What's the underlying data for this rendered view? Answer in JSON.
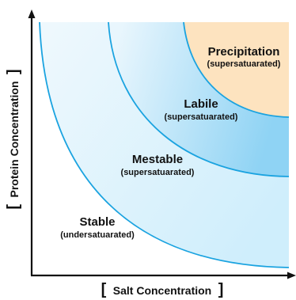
{
  "diagram": {
    "regions": [
      {
        "title": "Precipitation",
        "subtitle": "(supersatuarated)"
      },
      {
        "title": "Labile",
        "subtitle": "(supersatuarated)"
      },
      {
        "title": "Mestable",
        "subtitle": "(supersatuarated)"
      },
      {
        "title": "Stable",
        "subtitle": "(undersatuarated)"
      }
    ],
    "axes": {
      "x_label": "Salt Concentration",
      "y_label": "Protein Concentration",
      "bracket_open": "[",
      "bracket_close": "]"
    },
    "colors": {
      "curve_stroke": "#1aa3e0",
      "precipitation_fill": "#fde3bf",
      "labile_fill_outer": "#8fd3f4",
      "labile_fill_inner": "#e9f6fd",
      "mestable_fill": "#eaf7fd",
      "axis": "#111111"
    }
  }
}
